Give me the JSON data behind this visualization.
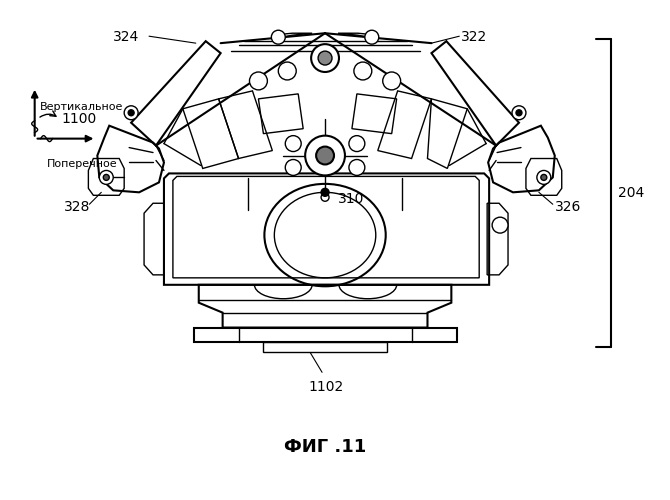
{
  "fig_width": 6.7,
  "fig_height": 5.0,
  "dpi": 100,
  "bg": "#ffffff",
  "lc": "black",
  "fig_label": "ФИГ .11",
  "label_322": "322",
  "label_324": "324",
  "label_326": "326",
  "label_328": "328",
  "label_310": "310",
  "label_204": "204",
  "label_1100": "1100",
  "label_1102": "1102",
  "text_vertical": "Вертикальное",
  "text_horizontal": "Поперечное",
  "fs_label": 10,
  "fs_title": 13
}
